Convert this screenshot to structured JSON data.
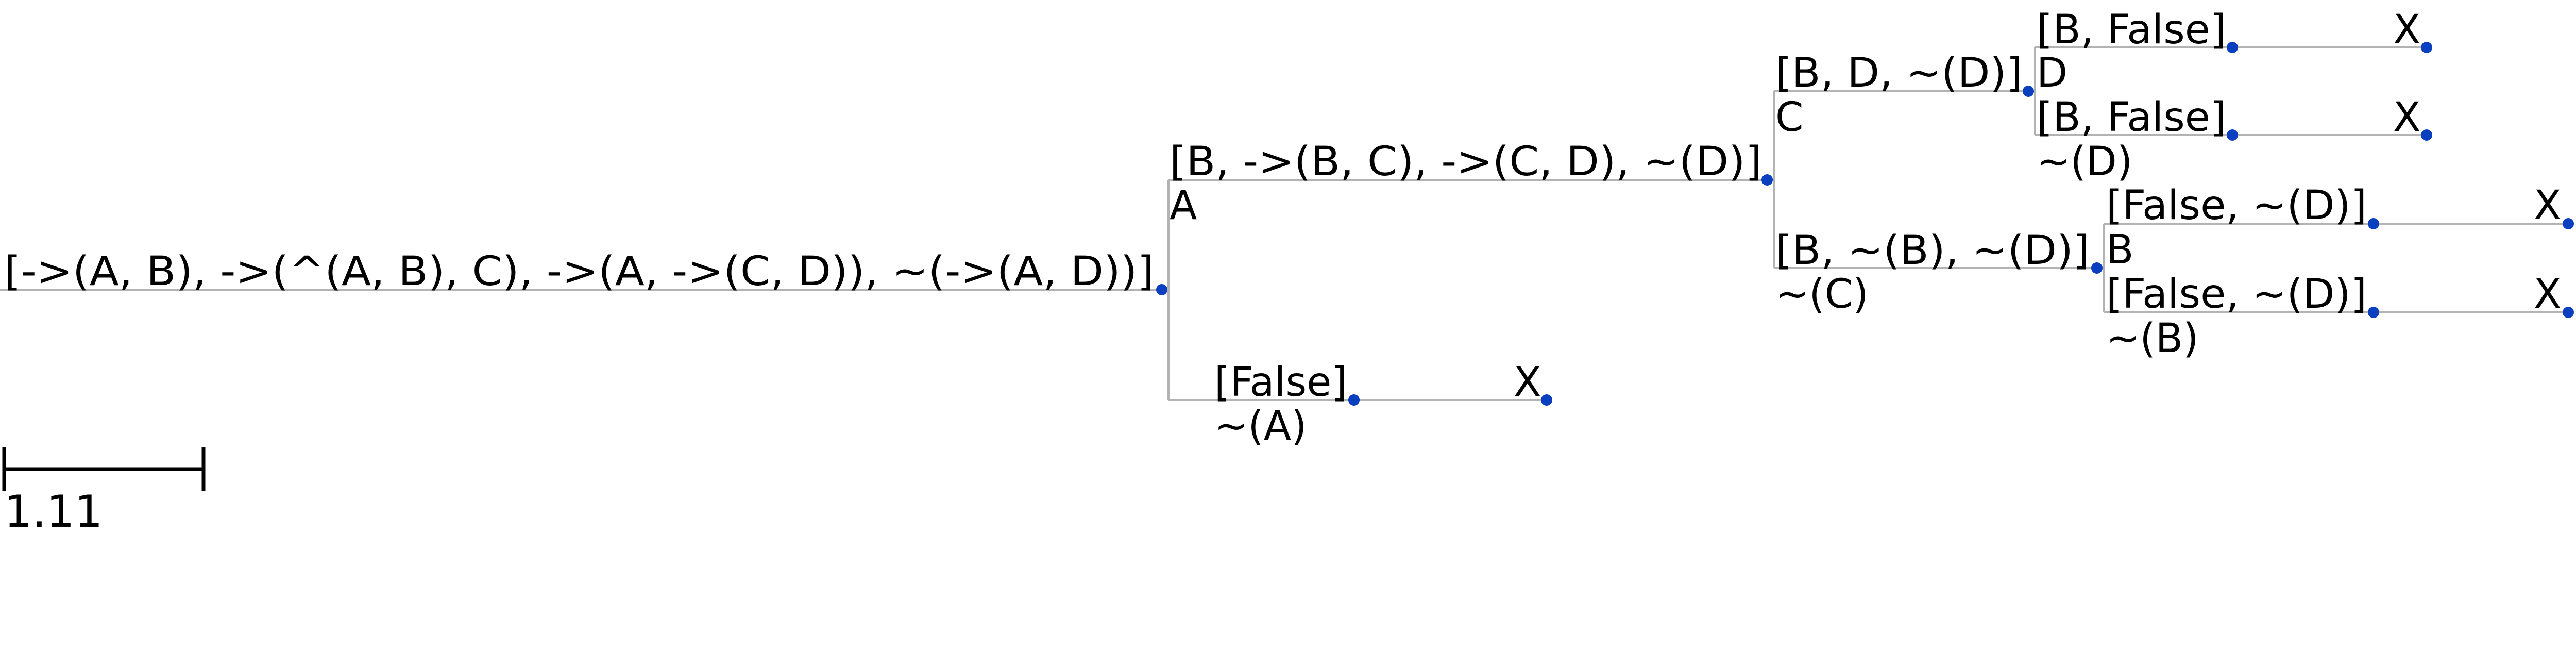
{
  "tree": {
    "root": "[->(A, B), ->(^(A, B), C), ->(A, ->(C, D)), ~(->(A, D))]",
    "a_branch": {
      "formula": "[B, ->(B, C), ->(C, D), ~(D)]",
      "edge": "A"
    },
    "na_branch": {
      "formula": "[False]",
      "edge": "~(A)",
      "leaf": "X"
    },
    "c_branch": {
      "formula": "[B, D, ~(D)]",
      "edge": "C"
    },
    "nc_branch": {
      "formula": "[B, ~(B), ~(D)]",
      "edge": "~(C)"
    },
    "cd_branch": {
      "formula": "[B, False]",
      "edge": "D",
      "leaf": "X"
    },
    "cnd_branch": {
      "formula": "[B, False]",
      "edge": "~(D)",
      "leaf": "X"
    },
    "ncb_branch": {
      "formula": "[False, ~(D)]",
      "edge": "B",
      "leaf": "X"
    },
    "ncnb_branch": {
      "formula": "[False, ~(D)]",
      "edge": "~(B)",
      "leaf": "X"
    }
  },
  "scale_bar": {
    "value": "1.11"
  },
  "colors": {
    "node": "#0a3fbf",
    "edge": "#b3b3b3",
    "text": "#000000"
  }
}
